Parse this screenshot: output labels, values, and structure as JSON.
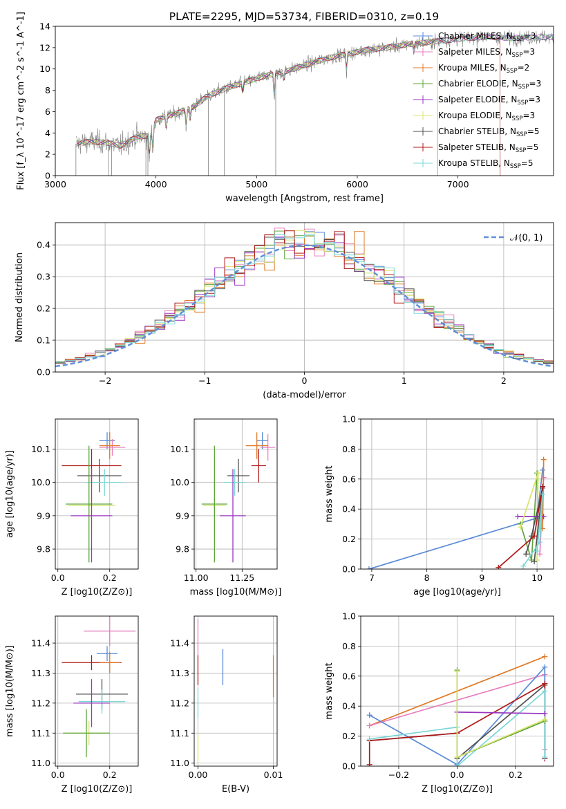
{
  "figure": {
    "title": "PLATE=2295, MJD=53734, FIBERID=0310, z=0.19"
  },
  "colors": {
    "chabrier_miles": "#5a8ad6",
    "salpeter_miles": "#e77fbf",
    "kroupa_miles": "#e07a28",
    "chabrier_elodie": "#5ea43a",
    "salpeter_elodie": "#9a35c0",
    "kroupa_elodie": "#d8e46a",
    "chabrier_stelib": "#505050",
    "salpeter_stelib": "#b01a1a",
    "kroupa_stelib": "#7cd6d6",
    "normal_fit": "#6090d8",
    "data_spectrum": "#808080"
  },
  "chart_data": [
    {
      "id": "spectrum",
      "type": "line",
      "xlabel": "wavelength [Angstrom, rest frame]",
      "ylabel": "Flux [f_λ 10^-17 erg cm^-2 s^-1 A^-1]",
      "xlim": [
        3000,
        7950
      ],
      "ylim": [
        0,
        14
      ],
      "xticks": [
        3000,
        4000,
        5000,
        6000,
        7000
      ],
      "yticks": [
        0,
        2,
        4,
        6,
        8,
        10,
        12,
        14
      ],
      "grid": false,
      "legend_position": "top-right",
      "legend": [
        {
          "key": "chabrier_miles",
          "label": "Chabrier MILES, N",
          "sub": "SSP",
          "tail": "=3"
        },
        {
          "key": "salpeter_miles",
          "label": "Salpeter MILES, N",
          "sub": "SSP",
          "tail": "=3"
        },
        {
          "key": "kroupa_miles",
          "label": "Kroupa MILES, N",
          "sub": "SSP",
          "tail": "=2"
        },
        {
          "key": "chabrier_elodie",
          "label": "Chabrier ELODIE, N",
          "sub": "SSP",
          "tail": "=3"
        },
        {
          "key": "salpeter_elodie",
          "label": "Salpeter ELODIE, N",
          "sub": "SSP",
          "tail": "=3"
        },
        {
          "key": "kroupa_elodie",
          "label": "Kroupa ELODIE, N",
          "sub": "SSP",
          "tail": "=3"
        },
        {
          "key": "chabrier_stelib",
          "label": "Chabrier STELIB, N",
          "sub": "SSP",
          "tail": "=5"
        },
        {
          "key": "salpeter_stelib",
          "label": "Salpeter STELIB, N",
          "sub": "SSP",
          "tail": "=5"
        },
        {
          "key": "kroupa_stelib",
          "label": "Kroupa STELIB, N",
          "sub": "SSP",
          "tail": "=5"
        }
      ],
      "continuum": [
        [
          3210,
          3.0
        ],
        [
          3350,
          3.2
        ],
        [
          3500,
          3.1
        ],
        [
          3650,
          2.8
        ],
        [
          3800,
          3.6
        ],
        [
          3950,
          3.8
        ],
        [
          4000,
          5.2
        ],
        [
          4100,
          5.6
        ],
        [
          4200,
          5.8
        ],
        [
          4300,
          6.2
        ],
        [
          4400,
          6.6
        ],
        [
          4500,
          7.4
        ],
        [
          4700,
          8.2
        ],
        [
          4900,
          8.8
        ],
        [
          5100,
          9.4
        ],
        [
          5300,
          9.8
        ],
        [
          5500,
          10.4
        ],
        [
          5700,
          11.0
        ],
        [
          5900,
          11.4
        ],
        [
          6100,
          11.8
        ],
        [
          6300,
          12.0
        ],
        [
          6500,
          12.3
        ],
        [
          6700,
          12.5
        ],
        [
          6900,
          12.7
        ],
        [
          7100,
          12.9
        ],
        [
          7300,
          13.0
        ],
        [
          7500,
          12.9
        ],
        [
          7950,
          13.0
        ]
      ],
      "absorption_lines": [
        {
          "wave": 3934,
          "depth": 2.2
        },
        {
          "wave": 3969,
          "depth": 2.0
        },
        {
          "wave": 4102,
          "depth": 1.2
        },
        {
          "wave": 4300,
          "depth": 1.8
        },
        {
          "wave": 4340,
          "depth": 1.1
        },
        {
          "wave": 4861,
          "depth": 0.9
        },
        {
          "wave": 5175,
          "depth": 2.4
        },
        {
          "wave": 5270,
          "depth": 0.8
        },
        {
          "wave": 5893,
          "depth": 1.6
        },
        {
          "wave": 6563,
          "depth": 0.8
        }
      ],
      "spikes": [
        {
          "wave": 3205,
          "low": 0.0
        },
        {
          "wave": 3530,
          "low": 0.0
        },
        {
          "wave": 3560,
          "low": 0.0
        },
        {
          "wave": 3900,
          "low": 0.0
        },
        {
          "wave": 3920,
          "low": 0.0
        },
        {
          "wave": 4520,
          "low": 0.0
        },
        {
          "wave": 4680,
          "low": 0.0
        },
        {
          "wave": 5190,
          "low": 0.0
        }
      ],
      "model_cutoffs": [
        {
          "key": "kroupa_elodie",
          "wave": 6795
        },
        {
          "key": "kroupa_miles",
          "wave": 6800
        },
        {
          "key": "salpeter_stelib",
          "wave": 7420
        }
      ]
    },
    {
      "id": "residuals",
      "type": "area",
      "xlabel": "(data-model)/error",
      "ylabel": "Normed distribution",
      "xlim": [
        -2.5,
        2.5
      ],
      "ylim": [
        0,
        0.47
      ],
      "xticks": [
        -2,
        -1,
        0,
        1,
        2
      ],
      "yticks": [
        0.0,
        0.1,
        0.2,
        0.3,
        0.4
      ],
      "grid": true,
      "legend_position": "top-right",
      "fit_label": "𝒩(0, 1)",
      "bin_width": 0.1,
      "bin_start": -2.5,
      "series_keys": [
        "chabrier_miles",
        "salpeter_miles",
        "kroupa_miles",
        "chabrier_elodie",
        "salpeter_elodie",
        "kroupa_elodie",
        "chabrier_stelib",
        "salpeter_stelib",
        "kroupa_stelib"
      ]
    },
    {
      "id": "age_vs_Z",
      "type": "scatter",
      "xlabel": "Z [log10(Z/Z⊙)]",
      "ylabel": "age [log10(age/yr)]",
      "xlim": [
        -0.01,
        0.31
      ],
      "ylim": [
        9.74,
        10.19
      ],
      "xticks": [
        0.0,
        0.2
      ],
      "yticks": [
        9.8,
        9.9,
        10.0,
        10.1
      ],
      "grid": true,
      "points": [
        {
          "key": "chabrier_miles",
          "x": 0.19,
          "xerr": 0.03,
          "y": 10.125,
          "yerr": 0.025
        },
        {
          "key": "salpeter_miles",
          "x": 0.21,
          "xerr": 0.05,
          "y": 10.105,
          "yerr": 0.025
        },
        {
          "key": "kroupa_miles",
          "x": 0.2,
          "xerr": 0.04,
          "y": 10.11,
          "yerr": 0.04
        },
        {
          "key": "salpeter_stelib",
          "x": 0.13,
          "xerr": 0.115,
          "y": 10.05,
          "yerr": 0.05
        },
        {
          "key": "chabrier_stelib",
          "x": 0.16,
          "xerr": 0.085,
          "y": 10.02,
          "yerr": 0.05
        },
        {
          "key": "kroupa_stelib",
          "x": 0.18,
          "xerr": 0.07,
          "y": 10.0,
          "yerr": 0.04
        },
        {
          "key": "kroupa_elodie",
          "x": 0.13,
          "xerr": 0.09,
          "y": 9.93,
          "yerr": 0.08
        },
        {
          "key": "chabrier_elodie",
          "x": 0.12,
          "xerr": 0.09,
          "y": 9.935,
          "yerr": 0.175
        },
        {
          "key": "salpeter_elodie",
          "x": 0.13,
          "xerr": 0.08,
          "y": 9.9,
          "yerr": 0.14
        }
      ]
    },
    {
      "id": "age_vs_mass",
      "type": "scatter",
      "xlabel": "mass [log10(M/M⊙)]",
      "ylabel": "",
      "xlim": [
        10.99,
        11.44
      ],
      "ylim": [
        9.74,
        10.19
      ],
      "xticks": [
        11.0,
        11.25
      ],
      "yticks": [
        9.8,
        9.9,
        10.0,
        10.1
      ],
      "grid": true,
      "points": [
        {
          "key": "chabrier_miles",
          "x": 11.36,
          "xerr": 0.03,
          "y": 10.125,
          "yerr": 0.025
        },
        {
          "key": "salpeter_miles",
          "x": 11.39,
          "xerr": 0.04,
          "y": 10.105,
          "yerr": 0.04
        },
        {
          "key": "kroupa_miles",
          "x": 11.33,
          "xerr": 0.06,
          "y": 10.11,
          "yerr": 0.04
        },
        {
          "key": "salpeter_stelib",
          "x": 11.34,
          "xerr": 0.04,
          "y": 10.05,
          "yerr": 0.05
        },
        {
          "key": "chabrier_stelib",
          "x": 11.23,
          "xerr": 0.06,
          "y": 10.02,
          "yerr": 0.05
        },
        {
          "key": "kroupa_stelib",
          "x": 11.21,
          "xerr": 0.06,
          "y": 10.0,
          "yerr": 0.04
        },
        {
          "key": "kroupa_elodie",
          "x": 11.1,
          "xerr": 0.06,
          "y": 9.93,
          "yerr": 0.08
        },
        {
          "key": "chabrier_elodie",
          "x": 11.1,
          "xerr": 0.07,
          "y": 9.935,
          "yerr": 0.175
        },
        {
          "key": "salpeter_elodie",
          "x": 11.2,
          "xerr": 0.07,
          "y": 9.9,
          "yerr": 0.14
        }
      ]
    },
    {
      "id": "weight_vs_age",
      "type": "line",
      "xlabel": "age [log10(age/yr)]",
      "ylabel": "mass weight",
      "xlim": [
        6.8,
        10.3
      ],
      "ylim": [
        0,
        1.0
      ],
      "xticks": [
        7,
        8,
        9,
        10
      ],
      "yticks": [
        0.0,
        0.2,
        0.4,
        0.6,
        0.8,
        1.0
      ],
      "grid": true,
      "series": [
        {
          "key": "chabrier_miles",
          "points": [
            [
              6.95,
              0.0
            ],
            [
              10.0,
              0.34
            ],
            [
              10.1,
              0.66
            ]
          ]
        },
        {
          "key": "salpeter_miles",
          "points": [
            [
              10.05,
              0.1
            ],
            [
              10.12,
              0.61
            ]
          ]
        },
        {
          "key": "kroupa_miles",
          "points": [
            [
              10.1,
              0.27
            ],
            [
              10.12,
              0.73
            ]
          ]
        },
        {
          "key": "chabrier_elodie",
          "points": [
            [
              9.7,
              0.3
            ],
            [
              9.9,
              0.06
            ],
            [
              10.0,
              0.64
            ]
          ]
        },
        {
          "key": "salpeter_elodie",
          "points": [
            [
              9.65,
              0.35
            ],
            [
              10.12,
              0.35
            ]
          ]
        },
        {
          "key": "kroupa_elodie",
          "points": [
            [
              9.7,
              0.28
            ],
            [
              10.02,
              0.64
            ],
            [
              10.0,
              0.06
            ]
          ]
        },
        {
          "key": "chabrier_stelib",
          "points": [
            [
              9.8,
              0.1
            ],
            [
              9.9,
              0.22
            ],
            [
              10.1,
              0.54
            ],
            [
              9.95,
              0.05
            ]
          ]
        },
        {
          "key": "salpeter_stelib",
          "points": [
            [
              9.3,
              0.01
            ],
            [
              9.95,
              0.22
            ],
            [
              10.1,
              0.55
            ]
          ]
        },
        {
          "key": "kroupa_stelib",
          "points": [
            [
              9.75,
              0.02
            ],
            [
              10.05,
              0.18
            ],
            [
              10.1,
              0.5
            ],
            [
              10.0,
              0.12
            ]
          ]
        }
      ]
    },
    {
      "id": "mass_vs_Z",
      "type": "scatter",
      "xlabel": "Z [log10(Z/Z⊙)]",
      "ylabel": "mass [log10(M/M⊙)]",
      "xlim": [
        -0.01,
        0.31
      ],
      "ylim": [
        10.99,
        11.49
      ],
      "xticks": [
        0.0,
        0.2
      ],
      "yticks": [
        11.0,
        11.1,
        11.2,
        11.3,
        11.4
      ],
      "grid": true,
      "points": [
        {
          "key": "salpeter_miles",
          "x": 0.2,
          "xerr": 0.1,
          "y": 11.44,
          "yerr": 0.05
        },
        {
          "key": "chabrier_miles",
          "x": 0.19,
          "xerr": 0.04,
          "y": 11.365,
          "yerr": 0.025
        },
        {
          "key": "salpeter_stelib",
          "x": 0.13,
          "xerr": 0.115,
          "y": 11.335,
          "yerr": 0.025
        },
        {
          "key": "kroupa_miles",
          "x": 0.2,
          "xerr": 0.04,
          "y": 11.335,
          "yerr": 0.035
        },
        {
          "key": "chabrier_stelib",
          "x": 0.17,
          "xerr": 0.1,
          "y": 11.23,
          "yerr": 0.05
        },
        {
          "key": "kroupa_stelib",
          "x": 0.17,
          "xerr": 0.09,
          "y": 11.205,
          "yerr": 0.04
        },
        {
          "key": "salpeter_elodie",
          "x": 0.13,
          "xerr": 0.07,
          "y": 11.2,
          "yerr": 0.08
        },
        {
          "key": "kroupa_elodie",
          "x": 0.12,
          "xerr": 0.08,
          "y": 11.1,
          "yerr": 0.04
        },
        {
          "key": "chabrier_elodie",
          "x": 0.11,
          "xerr": 0.09,
          "y": 11.1,
          "yerr": 0.08
        }
      ]
    },
    {
      "id": "mass_vs_ebv",
      "type": "scatter",
      "xlabel": "E(B-V)",
      "ylabel": "",
      "xlim": [
        -0.0005,
        0.0105
      ],
      "ylim": [
        10.99,
        11.49
      ],
      "xticks": [
        0.0,
        0.01
      ],
      "yticks": [
        11.0,
        11.1,
        11.2,
        11.3,
        11.4
      ],
      "grid": true,
      "points": [
        {
          "key": "salpeter_miles",
          "x": 0.0,
          "y": 11.42,
          "yerr": 0.06
        },
        {
          "key": "salpeter_stelib",
          "x": 0.0,
          "y": 11.31,
          "yerr": 0.05
        },
        {
          "key": "chabrier_miles",
          "x": 0.0033,
          "y": 11.32,
          "yerr": 0.06
        },
        {
          "key": "kroupa_miles",
          "x": 0.01,
          "y": 11.29,
          "yerr": 0.07
        },
        {
          "key": "kroupa_stelib",
          "x": 0.0,
          "y": 11.2,
          "yerr": 0.05
        },
        {
          "key": "kroupa_elodie",
          "x": 0.0,
          "y": 11.05,
          "yerr": 0.05
        }
      ]
    },
    {
      "id": "weight_vs_Z",
      "type": "line",
      "xlabel": "Z [log10(Z/Z⊙)]",
      "ylabel": "mass weight",
      "xlim": [
        -0.33,
        0.33
      ],
      "ylim": [
        0,
        1.0
      ],
      "xticks": [
        -0.2,
        0.0,
        0.2
      ],
      "yticks": [
        0.0,
        0.2,
        0.4,
        0.6,
        0.8,
        1.0
      ],
      "grid": true,
      "series": [
        {
          "key": "kroupa_miles",
          "points": [
            [
              -0.3,
              0.27
            ],
            [
              0.3,
              0.73
            ]
          ]
        },
        {
          "key": "salpeter_miles",
          "points": [
            [
              -0.3,
              0.27
            ],
            [
              0.3,
              0.61
            ],
            [
              0.3,
              0.11
            ]
          ]
        },
        {
          "key": "chabrier_miles",
          "points": [
            [
              -0.3,
              0.34
            ],
            [
              0.0,
              0.01
            ],
            [
              0.3,
              0.66
            ],
            [
              0.3,
              0.05
            ]
          ]
        },
        {
          "key": "chabrier_stelib",
          "points": [
            [
              -0.3,
              0.17
            ],
            [
              0.0,
              0.22
            ],
            [
              0.0,
              0.05
            ],
            [
              0.3,
              0.54
            ]
          ]
        },
        {
          "key": "salpeter_stelib",
          "points": [
            [
              -0.3,
              0.01
            ],
            [
              -0.3,
              0.17
            ],
            [
              0.0,
              0.22
            ],
            [
              0.3,
              0.55
            ],
            [
              0.3,
              0.05
            ]
          ]
        },
        {
          "key": "kroupa_stelib",
          "points": [
            [
              -0.3,
              0.18
            ],
            [
              0.0,
              0.26
            ],
            [
              0.0,
              0.0
            ],
            [
              0.3,
              0.5
            ],
            [
              0.3,
              0.06
            ]
          ]
        },
        {
          "key": "salpeter_elodie",
          "points": [
            [
              0.0,
              0.36
            ],
            [
              0.3,
              0.35
            ]
          ]
        },
        {
          "key": "chabrier_elodie",
          "points": [
            [
              0.0,
              0.64
            ],
            [
              0.0,
              0.06
            ],
            [
              0.3,
              0.3
            ]
          ]
        },
        {
          "key": "kroupa_elodie",
          "points": [
            [
              0.0,
              0.63
            ],
            [
              0.0,
              0.06
            ],
            [
              0.3,
              0.31
            ]
          ]
        }
      ]
    }
  ]
}
